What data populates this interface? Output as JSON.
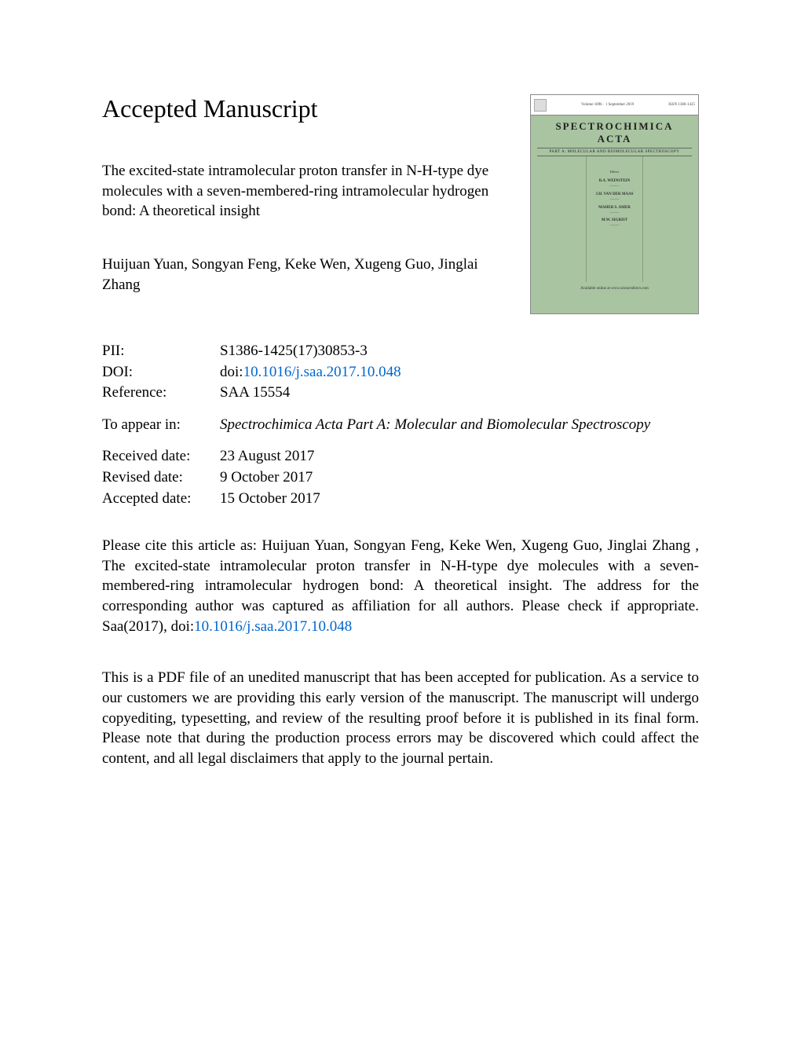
{
  "heading": "Accepted Manuscript",
  "article_title": "The excited-state intramolecular proton transfer in N-H-type dye molecules with a seven-membered-ring intramolecular hydrogen bond: A theoretical insight",
  "authors": "Huijuan Yuan, Songyan Feng, Keke Wen, Xugeng Guo, Jinglai Zhang",
  "cover": {
    "top_left": "Volume 189b · 1 September 2019",
    "top_right": "ISSN 1386-1425",
    "journal_line1": "SPECTROCHIMICA",
    "journal_line2": "ACTA",
    "sub": "PART A: MOLECULAR AND BIOMOLECULAR SPECTROSCOPY",
    "editors_label": "Editors",
    "ed1": "B.A. WEINSTEIN",
    "ed2": "J.H. VAN DER MAAS",
    "ed3": "MAHER S. AMER",
    "ed4": "M.W. SIGRIST",
    "footer": "Available online at www.sciencedirect.com"
  },
  "meta": {
    "pii_label": "PII:",
    "pii": "S1386-1425(17)30853-3",
    "doi_label": "DOI:",
    "doi_prefix": "doi:",
    "doi_link": "10.1016/j.saa.2017.10.048",
    "ref_label": "Reference:",
    "ref": "SAA 15554",
    "appear_label": "To appear in:",
    "appear": "Spectrochimica Acta Part A: Molecular and Biomolecular Spectroscopy",
    "received_label": "Received date:",
    "received": "23 August 2017",
    "revised_label": "Revised date:",
    "revised": "9 October 2017",
    "accepted_label": "Accepted date:",
    "accepted": "15 October 2017"
  },
  "cite_pre": "Please cite this article as: Huijuan Yuan, Songyan Feng, Keke Wen, Xugeng Guo, Jinglai Zhang , The excited-state intramolecular proton transfer in N-H-type dye molecules with a seven-membered-ring intramolecular hydrogen bond: A theoretical insight. The address for the corresponding author was captured as affiliation for all authors. Please check if appropriate. Saa(2017), doi:",
  "cite_link": "10.1016/j.saa.2017.10.048",
  "disclaimer": "This is a PDF file of an unedited manuscript that has been accepted for publication. As a service to our customers we are providing this early version of the manuscript. The manuscript will undergo copyediting, typesetting, and review of the resulting proof before it is published in its final form. Please note that during the production process errors may be discovered which could affect the content, and all legal disclaimers that apply to the journal pertain."
}
